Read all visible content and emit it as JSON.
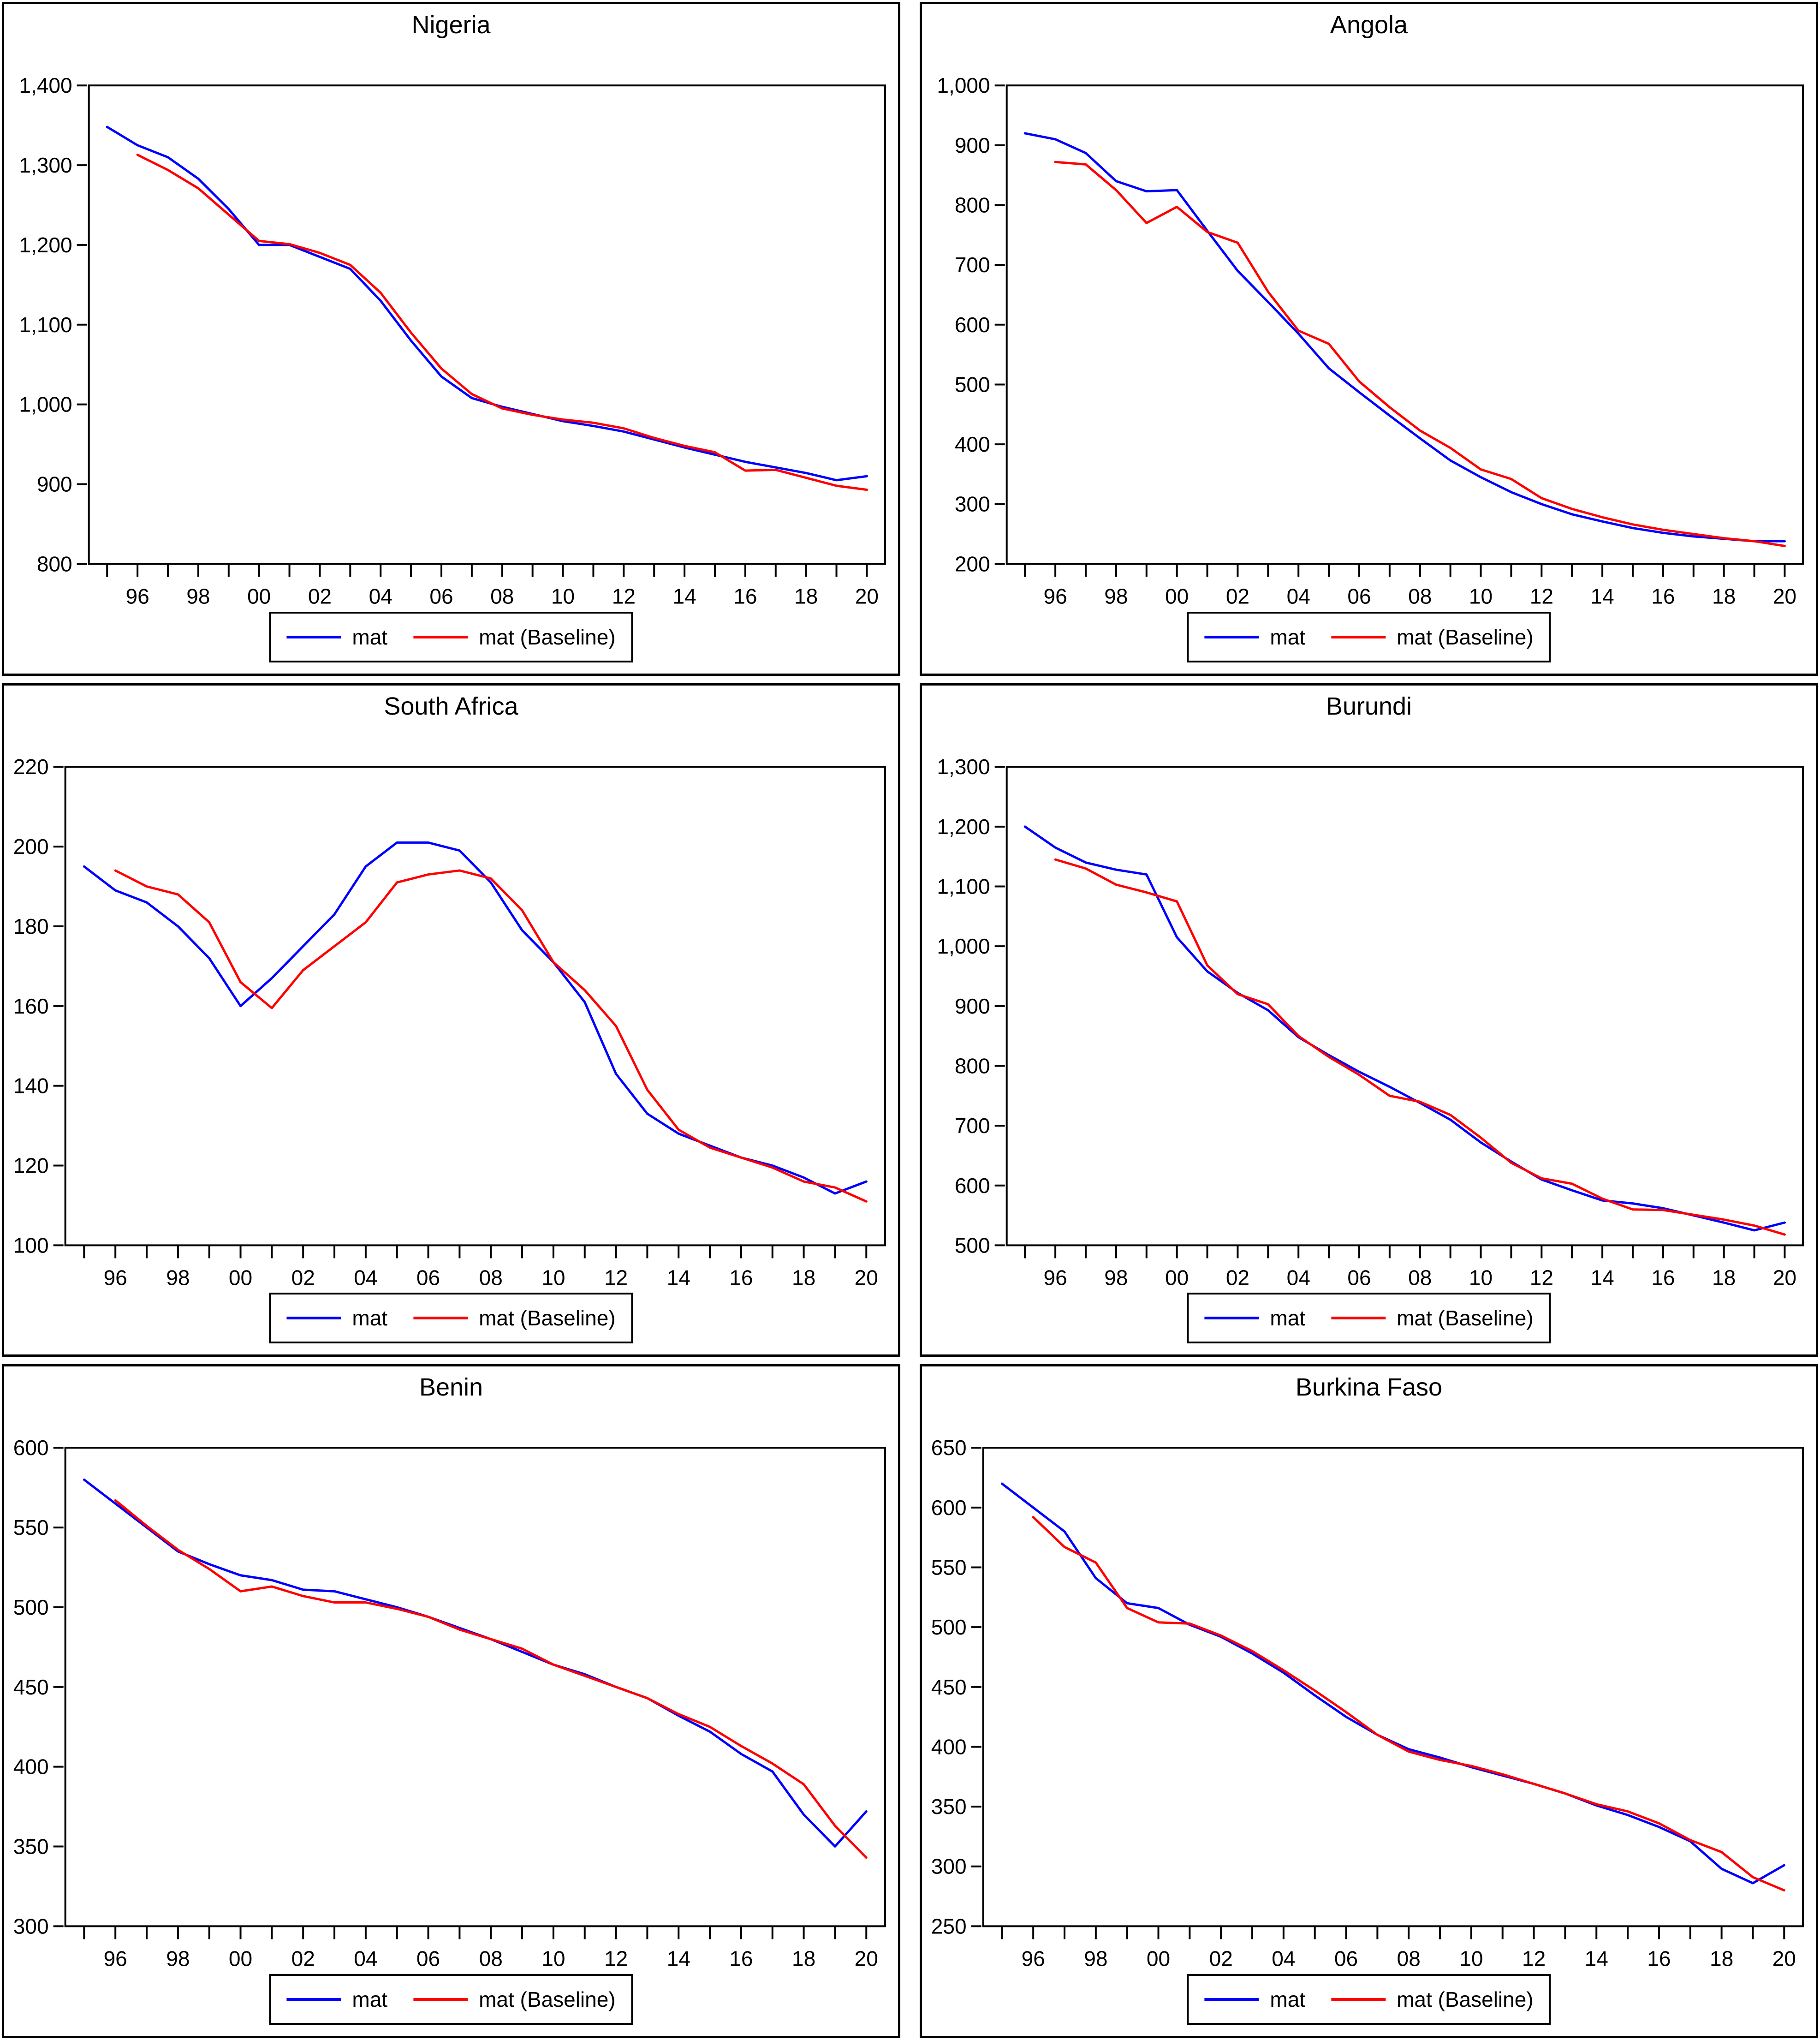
{
  "colors": {
    "mat": "#0000ff",
    "baseline": "#ff0000",
    "axis": "#000000"
  },
  "legend": {
    "mat_label": "mat",
    "baseline_label": "mat (Baseline)"
  },
  "panels": [
    {
      "title": "Nigeria",
      "chart_data": {
        "type": "line",
        "title": "Nigeria",
        "ylim": [
          800,
          1400
        ],
        "ystep": 100,
        "ytick_labels": [
          "800",
          "900",
          "1,000",
          "1,100",
          "1,200",
          "1,300",
          "1,400"
        ],
        "x_start_year": 1995,
        "x_end_year": 2020,
        "x_tick_labels": [
          "96",
          "98",
          "00",
          "02",
          "04",
          "06",
          "08",
          "10",
          "12",
          "14",
          "16",
          "18",
          "20"
        ],
        "grid": false,
        "legend_position": "bottom",
        "series": [
          {
            "name": "mat",
            "color": "#0000ff",
            "start_year": 1995,
            "values": [
              1348,
              1325,
              1310,
              1283,
              1245,
              1200,
              1200,
              1185,
              1170,
              1130,
              1080,
              1035,
              1008,
              997,
              988,
              979,
              973,
              966,
              956,
              946,
              937,
              928,
              921,
              914,
              905,
              910
            ]
          },
          {
            "name": "mat (Baseline)",
            "color": "#ff0000",
            "start_year": 1996,
            "values": [
              1313,
              1294,
              1271,
              1238,
              1205,
              1201,
              1190,
              1175,
              1140,
              1090,
              1045,
              1013,
              995,
              987,
              981,
              977,
              970,
              958,
              948,
              940,
              917,
              918,
              908,
              898,
              893
            ]
          }
        ]
      }
    },
    {
      "title": "Angola",
      "chart_data": {
        "type": "line",
        "title": "Angola",
        "ylim": [
          200,
          1000
        ],
        "ystep": 100,
        "ytick_labels": [
          "200",
          "300",
          "400",
          "500",
          "600",
          "700",
          "800",
          "900",
          "1,000"
        ],
        "x_start_year": 1995,
        "x_end_year": 2020,
        "x_tick_labels": [
          "96",
          "98",
          "00",
          "02",
          "04",
          "06",
          "08",
          "10",
          "12",
          "14",
          "16",
          "18",
          "20"
        ],
        "grid": false,
        "legend_position": "bottom",
        "series": [
          {
            "name": "mat",
            "color": "#0000ff",
            "start_year": 1995,
            "values": [
              920,
              910,
              887,
              840,
              823,
              825,
              757,
              690,
              638,
              585,
              527,
              487,
              448,
              410,
              373,
              345,
              320,
              300,
              283,
              271,
              260,
              252,
              246,
              242,
              238,
              238
            ]
          },
          {
            "name": "mat (Baseline)",
            "color": "#ff0000",
            "start_year": 1996,
            "values": [
              872,
              868,
              825,
              770,
              797,
              755,
              737,
              655,
              590,
              568,
              505,
              462,
              423,
              394,
              358,
              342,
              310,
              292,
              278,
              266,
              257,
              250,
              243,
              238,
              230
            ]
          }
        ]
      }
    },
    {
      "title": "South Africa",
      "chart_data": {
        "type": "line",
        "title": "South Africa",
        "ylim": [
          100,
          220
        ],
        "ystep": 20,
        "ytick_labels": [
          "100",
          "120",
          "140",
          "160",
          "180",
          "200",
          "220"
        ],
        "x_start_year": 1995,
        "x_end_year": 2020,
        "x_tick_labels": [
          "96",
          "98",
          "00",
          "02",
          "04",
          "06",
          "08",
          "10",
          "12",
          "14",
          "16",
          "18",
          "20"
        ],
        "grid": false,
        "legend_position": "bottom",
        "series": [
          {
            "name": "mat",
            "color": "#0000ff",
            "start_year": 1995,
            "values": [
              195,
              189,
              186,
              180,
              172,
              160,
              167,
              175,
              183,
              195,
              201,
              201,
              199,
              191,
              179,
              171,
              161,
              143,
              133,
              128,
              125,
              122,
              120,
              117,
              113,
              116
            ]
          },
          {
            "name": "mat (Baseline)",
            "color": "#ff0000",
            "start_year": 1996,
            "values": [
              194,
              190,
              188,
              181,
              166,
              159.5,
              169,
              175,
              181,
              191,
              193,
              194,
              192,
              184,
              171,
              164,
              155,
              139,
              129,
              124.5,
              122,
              119.5,
              116,
              114.5,
              111
            ]
          }
        ]
      }
    },
    {
      "title": "Burundi",
      "chart_data": {
        "type": "line",
        "title": "Burundi",
        "ylim": [
          500,
          1300
        ],
        "ystep": 100,
        "ytick_labels": [
          "500",
          "600",
          "700",
          "800",
          "900",
          "1,000",
          "1,100",
          "1,200",
          "1,300"
        ],
        "x_start_year": 1995,
        "x_end_year": 2020,
        "x_tick_labels": [
          "96",
          "98",
          "00",
          "02",
          "04",
          "06",
          "08",
          "10",
          "12",
          "14",
          "16",
          "18",
          "20"
        ],
        "grid": false,
        "legend_position": "bottom",
        "series": [
          {
            "name": "mat",
            "color": "#0000ff",
            "start_year": 1995,
            "values": [
              1200,
              1165,
              1140,
              1128,
              1120,
              1015,
              958,
              922,
              893,
              848,
              818,
              790,
              765,
              738,
              710,
              672,
              640,
              610,
              592,
              575,
              570,
              562,
              550,
              538,
              525,
              538
            ]
          },
          {
            "name": "mat (Baseline)",
            "color": "#ff0000",
            "start_year": 1996,
            "values": [
              1145,
              1130,
              1103,
              1090,
              1075,
              968,
              920,
              903,
              850,
              815,
              785,
              750,
              740,
              718,
              680,
              638,
              612,
              603,
              578,
              560,
              559,
              551,
              543,
              533,
              518
            ]
          }
        ]
      }
    },
    {
      "title": "Benin",
      "chart_data": {
        "type": "line",
        "title": "Benin",
        "ylim": [
          300,
          600
        ],
        "ystep": 50,
        "ytick_labels": [
          "300",
          "350",
          "400",
          "450",
          "500",
          "550",
          "600"
        ],
        "x_start_year": 1995,
        "x_end_year": 2020,
        "x_tick_labels": [
          "96",
          "98",
          "00",
          "02",
          "04",
          "06",
          "08",
          "10",
          "12",
          "14",
          "16",
          "18",
          "20"
        ],
        "grid": false,
        "legend_position": "bottom",
        "series": [
          {
            "name": "mat",
            "color": "#0000ff",
            "start_year": 1995,
            "values": [
              580,
              565,
              550,
              535,
              527,
              520,
              517,
              511,
              510,
              505,
              500,
              494,
              487,
              480,
              472,
              464,
              458,
              450,
              443,
              432,
              422,
              408,
              397,
              370,
              350,
              372
            ]
          },
          {
            "name": "mat (Baseline)",
            "color": "#ff0000",
            "start_year": 1996,
            "values": [
              567,
              551,
              536,
              524,
              510,
              513,
              507,
              503,
              503,
              499,
              494,
              486,
              480,
              474,
              464,
              457,
              450,
              443,
              433,
              425,
              413,
              402,
              389,
              363,
              343
            ]
          }
        ]
      }
    },
    {
      "title": "Burkina Faso",
      "chart_data": {
        "type": "line",
        "title": "Burkina Faso",
        "ylim": [
          250,
          650
        ],
        "ystep": 50,
        "ytick_labels": [
          "250",
          "300",
          "350",
          "400",
          "450",
          "500",
          "550",
          "600",
          "650"
        ],
        "x_start_year": 1995,
        "x_end_year": 2020,
        "x_tick_labels": [
          "96",
          "98",
          "00",
          "02",
          "04",
          "06",
          "08",
          "10",
          "12",
          "14",
          "16",
          "18",
          "20"
        ],
        "grid": false,
        "legend_position": "bottom",
        "series": [
          {
            "name": "mat",
            "color": "#0000ff",
            "start_year": 1995,
            "values": [
              620,
              600,
              580,
              541,
              520,
              516,
              502,
              492,
              478,
              462,
              443,
              425,
              410,
              398,
              391,
              383,
              376,
              369,
              361,
              351,
              343,
              333,
              321,
              298,
              286,
              301
            ]
          },
          {
            "name": "mat (Baseline)",
            "color": "#ff0000",
            "start_year": 1996,
            "values": [
              592,
              567,
              554,
              516,
              504,
              503,
              493,
              480,
              464,
              447,
              429,
              410,
              396,
              389,
              384,
              377,
              369,
              361,
              352,
              346,
              336,
              322,
              312,
              291,
              280
            ]
          }
        ]
      }
    }
  ]
}
